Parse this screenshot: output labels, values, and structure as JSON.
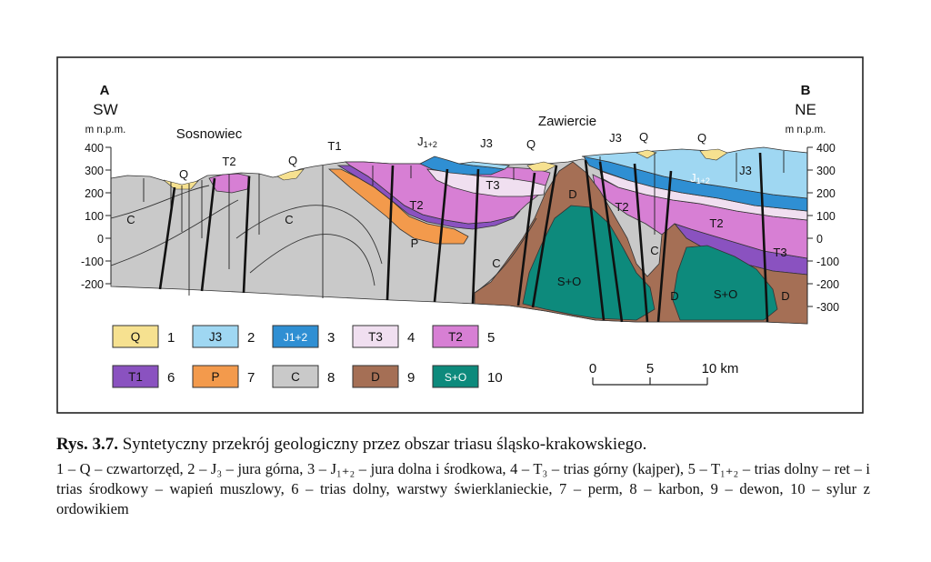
{
  "section": {
    "left_end": {
      "letter": "A",
      "direction": "SW",
      "unit": "m n.p.m."
    },
    "right_end": {
      "letter": "B",
      "direction": "NE",
      "unit": "m n.p.m."
    },
    "left_axis_ticks": [
      "400",
      "300",
      "200",
      "100",
      "0",
      "-100",
      "-200"
    ],
    "right_axis_ticks": [
      "400",
      "300",
      "200",
      "100",
      "0",
      "-100",
      "-200",
      "-300"
    ],
    "towns": [
      "Sosnowiec",
      "Zawiercie"
    ],
    "unit_labels": {
      "q": "Q",
      "t1": "T1",
      "t2": "T2",
      "t3": "T3",
      "j1": "J",
      "j1_sub": "1+2",
      "j3": "J3",
      "p": "P",
      "c": "C",
      "d": "D",
      "so": "S+O"
    }
  },
  "legend": [
    {
      "symbol": "Q",
      "number": "1",
      "color": "#f6e190"
    },
    {
      "symbol": "J3",
      "number": "2",
      "color": "#9fd7f2"
    },
    {
      "symbol": "J1+2",
      "number": "3",
      "color": "#2f8fd3"
    },
    {
      "symbol": "T3",
      "number": "4",
      "color": "#f0dff0"
    },
    {
      "symbol": "T2",
      "number": "5",
      "color": "#d77fd4"
    },
    {
      "symbol": "T1",
      "number": "6",
      "color": "#8a52c0"
    },
    {
      "symbol": "P",
      "number": "7",
      "color": "#f39a4c"
    },
    {
      "symbol": "C",
      "number": "8",
      "color": "#c9c9c9"
    },
    {
      "symbol": "D",
      "number": "9",
      "color": "#a56f55"
    },
    {
      "symbol": "S+O",
      "number": "10",
      "color": "#0d8a7c"
    }
  ],
  "scale_bar": {
    "ticks": [
      "0",
      "5",
      "10 km"
    ]
  },
  "caption": {
    "label": "Rys. 3.7.",
    "title": "Syntetyczny przekrój geologiczny przez obszar triasu śląsko-krakowskiego.",
    "body": "1 – Q – czwartorzęd, 2 – J₃ – jura górna, 3 – J₁₊₂ – jura dolna i środkowa, 4 – T₃ – trias górny (kajper), 5 – T₁₊₂ – trias dolny – ret – i trias środkowy – wapień muszlowy, 6 – trias dolny, warstwy świerklanieckie, 7 – perm, 8 – karbon, 9 – dewon, 10 – sylur z ordowikiem"
  }
}
